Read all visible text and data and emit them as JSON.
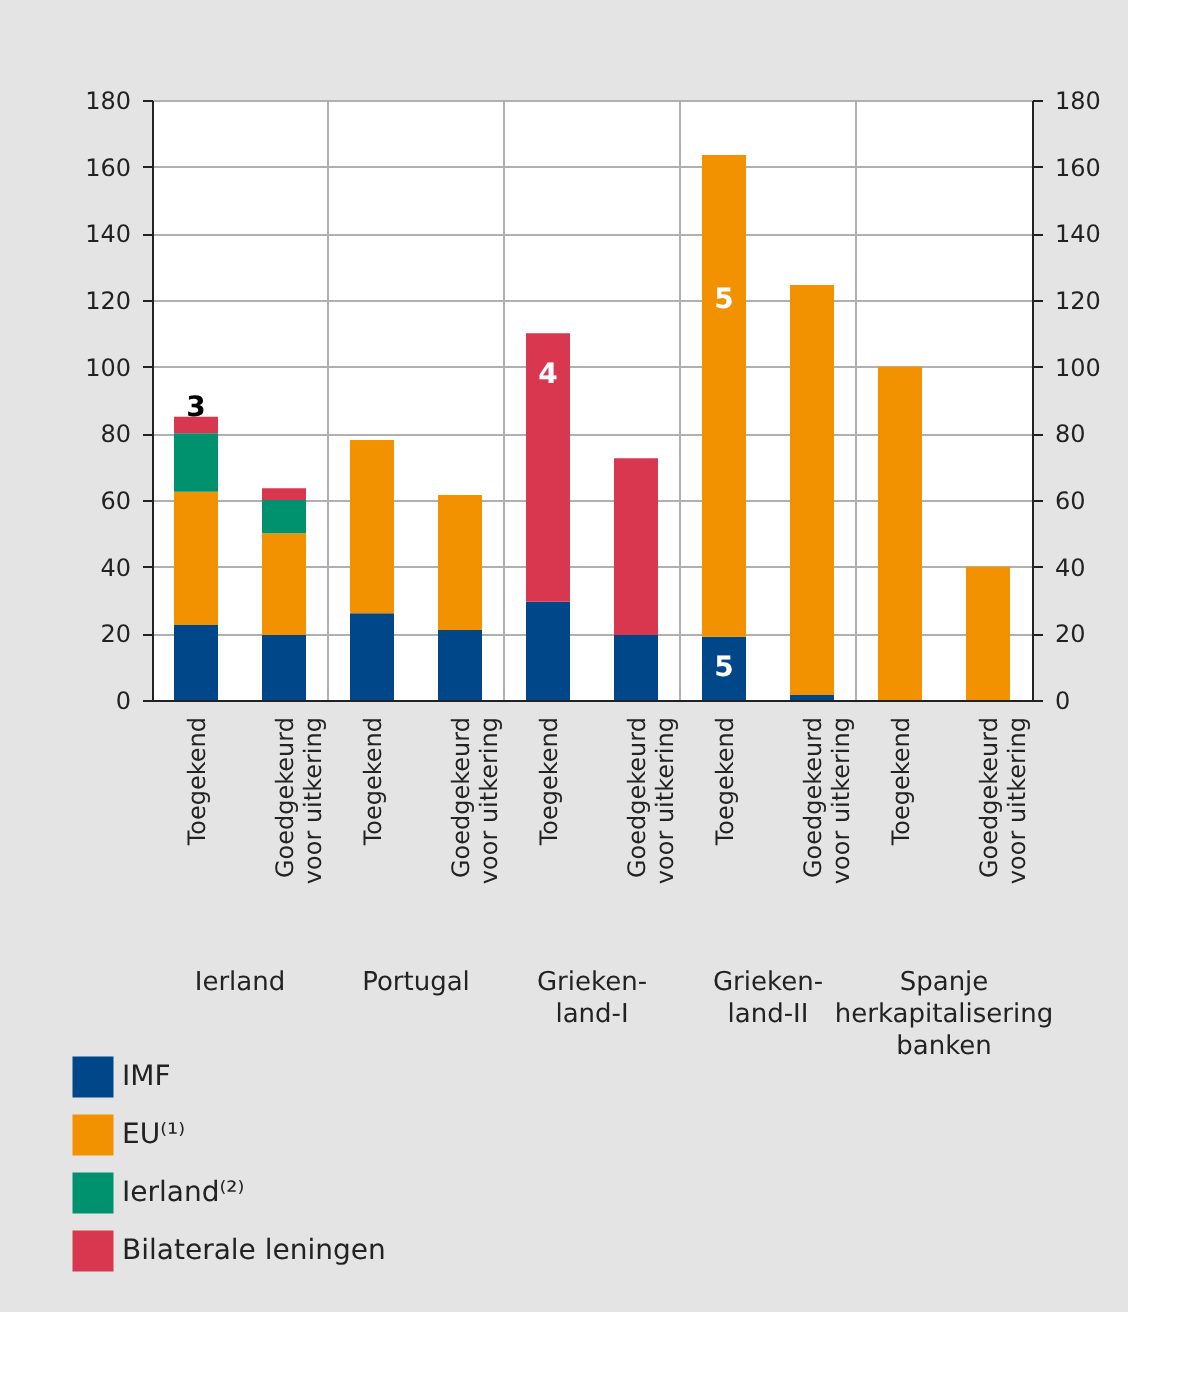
{
  "chart_data": {
    "type": "bar",
    "stacked": true,
    "categories": [
      "Toegekend",
      "Goedgekeurd voor uitkering",
      "Toegekend",
      "Goedgekeurd voor uitkering",
      "Toegekend",
      "Goedgekeurd voor uitkering",
      "Toegekend",
      "Goedgekeurd voor uitkering",
      "Toegekend",
      "Goedgekeurd voor uitkering"
    ],
    "series": [
      {
        "name": "IMF",
        "color": "#00478a",
        "values": [
          22.5,
          19.5,
          26,
          21,
          29.5,
          19.5,
          19,
          1.5,
          null,
          null
        ]
      },
      {
        "name": "EU⁽¹⁾",
        "color": "#f39200",
        "values": [
          40,
          30.5,
          52,
          40.5,
          null,
          null,
          144.5,
          123,
          100,
          40
        ]
      },
      {
        "name": "Ierland⁽²⁾",
        "color": "#00916e",
        "values": [
          17.5,
          10,
          null,
          null,
          null,
          null,
          null,
          null,
          null,
          null
        ]
      },
      {
        "name": "Bilaterale leningen",
        "color": "#d9374f",
        "values": [
          5,
          3.5,
          null,
          null,
          80.5,
          53,
          null,
          null,
          null,
          null
        ]
      }
    ],
    "annotations": [
      "Ierland",
      "Portugal",
      "Grieken-land-I",
      "Grieken-land-II",
      "Spanje herkapitalisering banken",
      "3",
      "4",
      "5",
      "5"
    ],
    "ylim": [
      0,
      180
    ],
    "yticks": [
      0,
      20,
      40,
      60,
      80,
      100,
      120,
      140,
      160,
      180
    ],
    "y2lim": [
      0,
      180
    ],
    "y2ticks": [
      0,
      20,
      40,
      60,
      80,
      100,
      120,
      140,
      160,
      180
    ],
    "grid": "y",
    "legend": "bottom left"
  }
}
